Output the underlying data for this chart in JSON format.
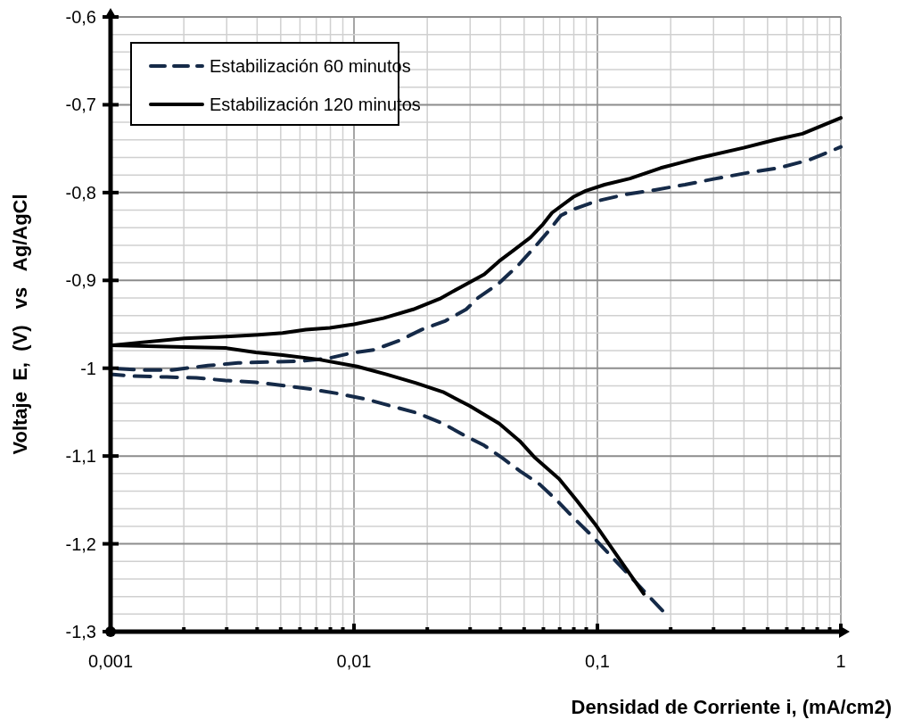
{
  "chart_data": {
    "type": "line",
    "xlabel": "Densidad de Corriente i, (mA/cm2)",
    "ylabel": "Voltaje  E,  (V)   vs   Ag/AgCl",
    "log": "x",
    "grid": true,
    "legend": "top left",
    "xlim": [
      0.001,
      1
    ],
    "ylim": [
      -1.3,
      -0.6
    ],
    "xticks": [
      {
        "value": 0.001,
        "label": "0,001"
      },
      {
        "value": 0.002,
        "label": null
      },
      {
        "value": 0.003,
        "label": null
      },
      {
        "value": 0.004,
        "label": null
      },
      {
        "value": 0.005,
        "label": null
      },
      {
        "value": 0.006,
        "label": null
      },
      {
        "value": 0.007,
        "label": null
      },
      {
        "value": 0.008,
        "label": null
      },
      {
        "value": 0.009,
        "label": null
      },
      {
        "value": 0.01,
        "label": "0,01"
      },
      {
        "value": 0.02,
        "label": null
      },
      {
        "value": 0.03,
        "label": null
      },
      {
        "value": 0.04,
        "label": null
      },
      {
        "value": 0.05,
        "label": null
      },
      {
        "value": 0.06,
        "label": null
      },
      {
        "value": 0.07,
        "label": null
      },
      {
        "value": 0.08,
        "label": null
      },
      {
        "value": 0.09,
        "label": null
      },
      {
        "value": 0.1,
        "label": "0,1"
      },
      {
        "value": 0.2,
        "label": null
      },
      {
        "value": 0.3,
        "label": null
      },
      {
        "value": 0.4,
        "label": null
      },
      {
        "value": 0.5,
        "label": null
      },
      {
        "value": 0.6,
        "label": null
      },
      {
        "value": 0.7,
        "label": null
      },
      {
        "value": 0.8,
        "label": null
      },
      {
        "value": 0.9,
        "label": null
      },
      {
        "value": 1,
        "label": "1"
      }
    ],
    "yticks": [
      {
        "value": -1.3,
        "label": "-1,3"
      },
      {
        "value": -1.28,
        "label": null
      },
      {
        "value": -1.26,
        "label": null
      },
      {
        "value": -1.24,
        "label": null
      },
      {
        "value": -1.22,
        "label": null
      },
      {
        "value": -1.2,
        "label": "-1,2"
      },
      {
        "value": -1.18,
        "label": null
      },
      {
        "value": -1.16,
        "label": null
      },
      {
        "value": -1.14,
        "label": null
      },
      {
        "value": -1.12,
        "label": null
      },
      {
        "value": -1.1,
        "label": "-1,1"
      },
      {
        "value": -1.08,
        "label": null
      },
      {
        "value": -1.06,
        "label": null
      },
      {
        "value": -1.04,
        "label": null
      },
      {
        "value": -1.02,
        "label": null
      },
      {
        "value": -1,
        "label": "-1"
      },
      {
        "value": -0.98,
        "label": null
      },
      {
        "value": -0.96,
        "label": null
      },
      {
        "value": -0.94,
        "label": null
      },
      {
        "value": -0.92,
        "label": null
      },
      {
        "value": -0.9,
        "label": "-0,9"
      },
      {
        "value": -0.88,
        "label": null
      },
      {
        "value": -0.86,
        "label": null
      },
      {
        "value": -0.84,
        "label": null
      },
      {
        "value": -0.82,
        "label": null
      },
      {
        "value": -0.8,
        "label": "-0,8"
      },
      {
        "value": -0.78,
        "label": null
      },
      {
        "value": -0.76,
        "label": null
      },
      {
        "value": -0.74,
        "label": null
      },
      {
        "value": -0.72,
        "label": null
      },
      {
        "value": -0.7,
        "label": "-0,7"
      },
      {
        "value": -0.68,
        "label": null
      },
      {
        "value": -0.66,
        "label": null
      },
      {
        "value": -0.64,
        "label": null
      },
      {
        "value": -0.62,
        "label": null
      },
      {
        "value": -0.6,
        "label": "-0,6"
      }
    ],
    "series": [
      {
        "name": "Estabilización 60 minutos",
        "color": "#152a48",
        "line_style": "dashed",
        "x": [
          0.185,
          0.0943,
          0.0796,
          0.0684,
          0.0578,
          0.048,
          0.0406,
          0.0343,
          0.0282,
          0.0232,
          0.0182,
          0.0146,
          0.0115,
          0.00866,
          0.00673,
          0.00522,
          0.00395,
          0.00297,
          0.00225,
          0.0017,
          0.00125,
          0.001,
          0.001,
          0.00136,
          0.00179,
          0.00251,
          0.00334,
          0.00441,
          0.00603,
          0.00776,
          0.00967,
          0.0121,
          0.0152,
          0.019,
          0.0238,
          0.0289,
          0.0323,
          0.0395,
          0.0472,
          0.0545,
          0.0634,
          0.0708,
          0.0796,
          0.0983,
          0.131,
          0.172,
          0.229,
          0.307,
          0.423,
          0.554,
          0.738,
          1
        ],
        "values": [
          -1.276,
          -1.19,
          -1.17,
          -1.151,
          -1.132,
          -1.117,
          -1.102,
          -1.088,
          -1.076,
          -1.063,
          -1.051,
          -1.044,
          -1.036,
          -1.029,
          -1.024,
          -1.02,
          -1.016,
          -1.014,
          -1.011,
          -1.01,
          -1.009,
          -1.007,
          -1.0,
          -1.002,
          -1.002,
          -0.997,
          -0.994,
          -0.993,
          -0.992,
          -0.989,
          -0.983,
          -0.979,
          -0.969,
          -0.956,
          -0.946,
          -0.933,
          -0.92,
          -0.903,
          -0.883,
          -0.864,
          -0.843,
          -0.826,
          -0.819,
          -0.81,
          -0.802,
          -0.797,
          -0.791,
          -0.784,
          -0.777,
          -0.772,
          -0.763,
          -0.748
        ]
      },
      {
        "name": "Estabilización 120 minutos",
        "color": "#000000",
        "line_style": "solid",
        "x": [
          0.155,
          0.118,
          0.0975,
          0.0824,
          0.0696,
          0.0554,
          0.048,
          0.0395,
          0.0299,
          0.0232,
          0.018,
          0.0136,
          0.0103,
          0.00714,
          0.00509,
          0.00395,
          0.00297,
          0.00201,
          0.001,
          0.00201,
          0.00297,
          0.00406,
          0.00509,
          0.00634,
          0.00796,
          0.01,
          0.0132,
          0.0175,
          0.0225,
          0.0273,
          0.0343,
          0.0395,
          0.0456,
          0.0531,
          0.0598,
          0.0651,
          0.0796,
          0.0896,
          0.107,
          0.136,
          0.182,
          0.257,
          0.399,
          0.536,
          0.696,
          1
        ],
        "values": [
          -1.257,
          -1.21,
          -1.177,
          -1.151,
          -1.126,
          -1.102,
          -1.083,
          -1.063,
          -1.043,
          -1.027,
          -1.017,
          -1.007,
          -0.998,
          -0.99,
          -0.985,
          -0.982,
          -0.977,
          -0.976,
          -0.974,
          -0.966,
          -0.964,
          -0.962,
          -0.96,
          -0.956,
          -0.954,
          -0.95,
          -0.943,
          -0.933,
          -0.921,
          -0.908,
          -0.893,
          -0.878,
          -0.865,
          -0.851,
          -0.836,
          -0.823,
          -0.805,
          -0.798,
          -0.791,
          -0.784,
          -0.772,
          -0.761,
          -0.749,
          -0.74,
          -0.733,
          -0.715
        ]
      }
    ]
  }
}
